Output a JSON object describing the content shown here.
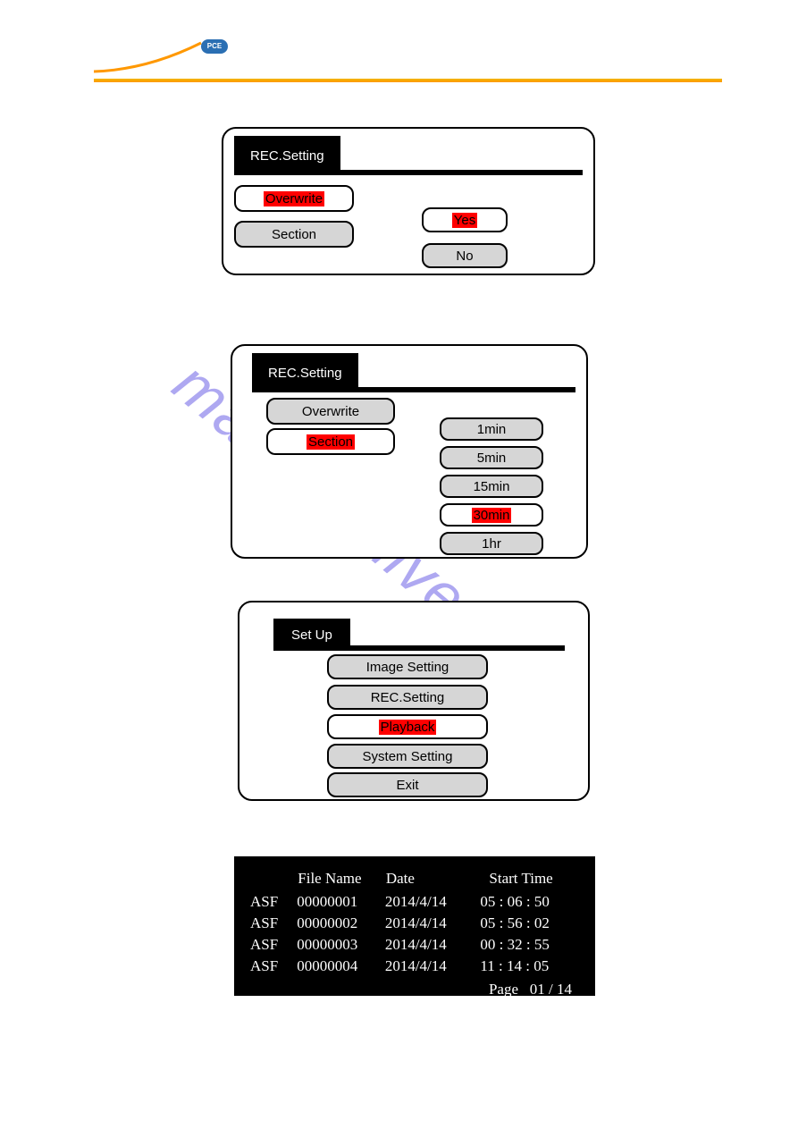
{
  "header": {
    "badge_text": "PCE"
  },
  "watermark": {
    "text": "manualshive.com"
  },
  "panel1": {
    "title": "REC.Setting",
    "overwrite_label": "Overwrite",
    "section_label": "Section",
    "yes_label": "Yes",
    "no_label": "No"
  },
  "panel2": {
    "title": "REC.Setting",
    "overwrite_label": "Overwrite",
    "section_label": "Section",
    "opt_1min": "1min",
    "opt_5min": "5min",
    "opt_15min": "15min",
    "opt_30min": "30min",
    "opt_1hr": "1hr"
  },
  "panel3": {
    "title": "Set Up",
    "image_setting": "Image Setting",
    "rec_setting": "REC.Setting",
    "playback": "Playback",
    "system_setting": "System Setting",
    "exit": "Exit"
  },
  "filetable": {
    "headers": {
      "filename": "File Name",
      "date": "Date",
      "start_time": "Start Time"
    },
    "rows": [
      {
        "ext": "ASF",
        "name": "00000001",
        "date": "2014/4/14",
        "time": "05 : 06 : 50"
      },
      {
        "ext": "ASF",
        "name": "00000002",
        "date": "2014/4/14",
        "time": "05 : 56 : 02"
      },
      {
        "ext": "ASF",
        "name": "00000003",
        "date": "2014/4/14",
        "time": "00 : 32 : 55"
      },
      {
        "ext": "ASF",
        "name": "00000004",
        "date": "2014/4/14",
        "time": "11 : 14 : 05"
      }
    ],
    "page_label": "Page",
    "page_value": "01 / 14"
  },
  "colors": {
    "highlight": "#ff0000",
    "button_fill": "#d6d6d6",
    "panel_border": "#000000",
    "header_rule": "#ff9800",
    "watermark": "#7a6fe8"
  }
}
